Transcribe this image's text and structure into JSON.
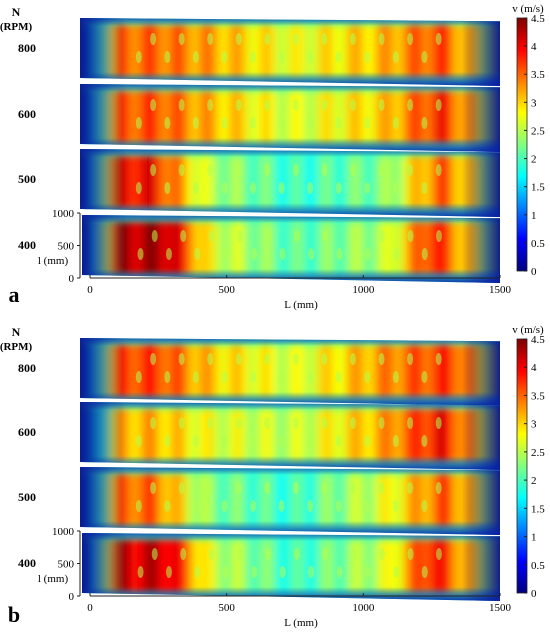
{
  "chart_data": [
    {
      "panel_label": "a",
      "type": "heatmap",
      "row_axis_title": "N",
      "row_axis_unit": "(RPM)",
      "rows": [
        "800",
        "600",
        "500",
        "400"
      ],
      "xlabel": "L (mm)",
      "ylabel": "l (mm)",
      "xticks": [
        "0",
        "500",
        "1000",
        "1500"
      ],
      "yticks": [
        "0",
        "500",
        "1000"
      ],
      "xlim": [
        0,
        1500
      ],
      "ylim": [
        0,
        1000
      ],
      "colorbar_label": "v (m/s)",
      "colorbar_ticks": [
        "0",
        "0.5",
        "1",
        "1.5",
        "2",
        "2.5",
        "3",
        "3.5",
        "4",
        "4.5"
      ],
      "vlim": [
        0,
        4.5
      ],
      "colormap": "jet"
    },
    {
      "panel_label": "b",
      "type": "heatmap",
      "row_axis_title": "N",
      "row_axis_unit": "(RPM)",
      "rows": [
        "800",
        "600",
        "500",
        "400"
      ],
      "xlabel": "L (mm)",
      "ylabel": "l (mm)",
      "xticks": [
        "0",
        "500",
        "1000",
        "1500"
      ],
      "yticks": [
        "0",
        "500",
        "1000"
      ],
      "xlim": [
        0,
        1500
      ],
      "ylim": [
        0,
        1000
      ],
      "colorbar_label": "v (m/s)",
      "colorbar_ticks": [
        "0",
        "0.5",
        "1",
        "1.5",
        "2",
        "2.5",
        "3",
        "3.5",
        "4",
        "4.5"
      ],
      "vlim": [
        0,
        4.5
      ],
      "colormap": "jet"
    }
  ]
}
